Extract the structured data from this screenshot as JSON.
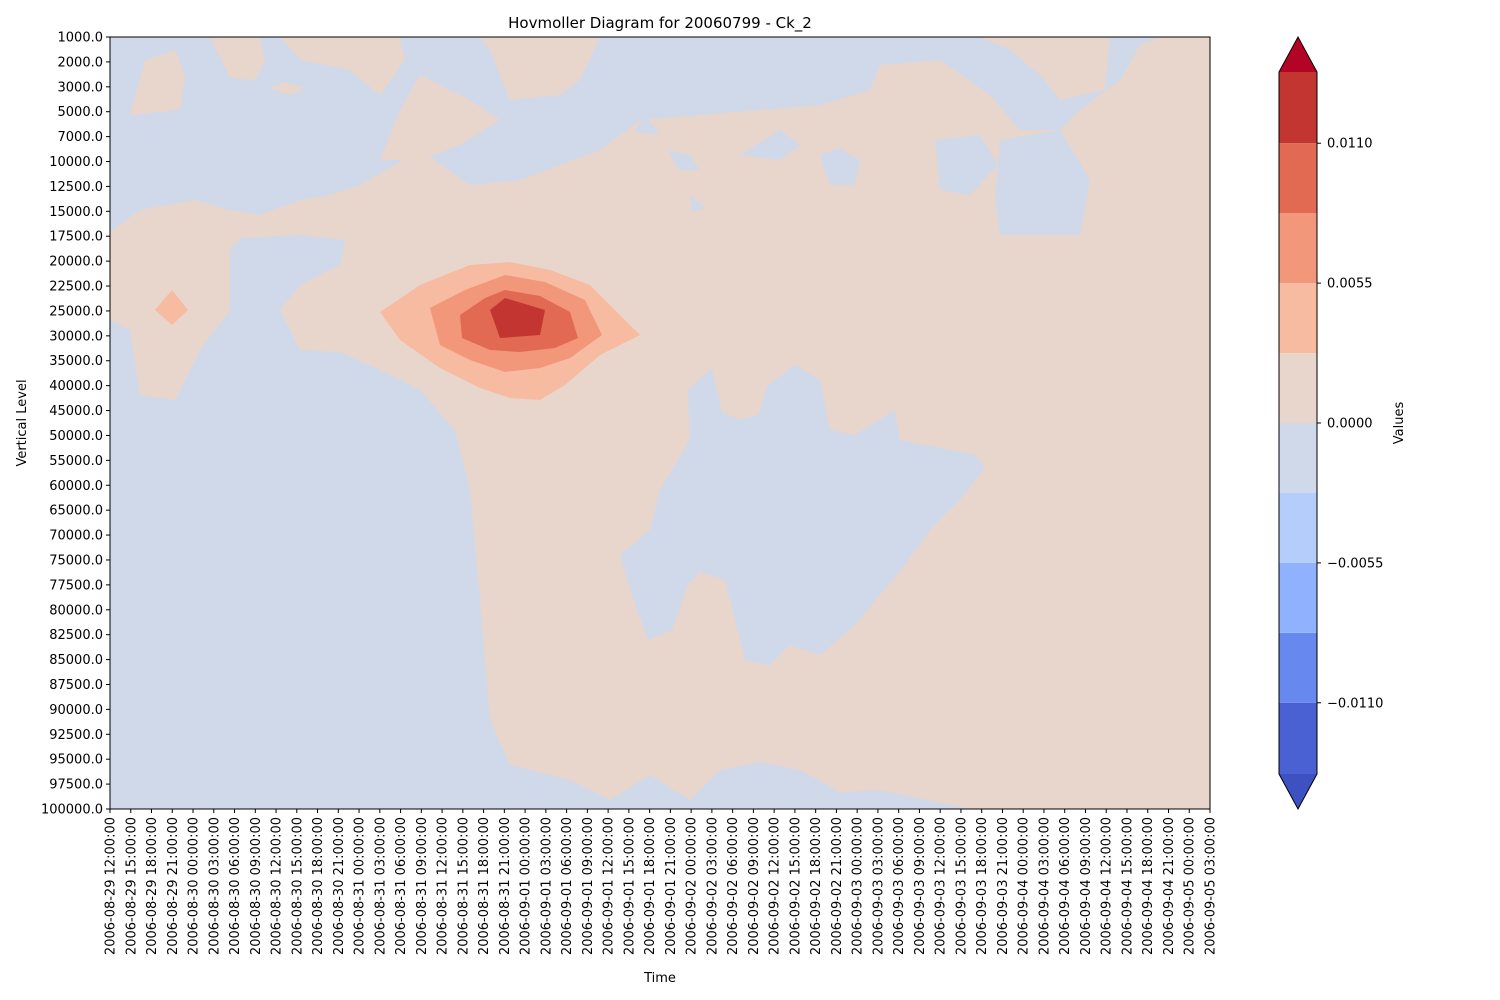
{
  "chart_data": {
    "type": "heatmap",
    "title": "Hovmoller Diagram for 20060799 - Ck_2",
    "xlabel": "Time",
    "ylabel": "Vertical Level",
    "x_ticks": [
      "2006-08-29 12:00:00",
      "2006-08-29 15:00:00",
      "2006-08-29 18:00:00",
      "2006-08-29 21:00:00",
      "2006-08-30 00:00:00",
      "2006-08-30 03:00:00",
      "2006-08-30 06:00:00",
      "2006-08-30 09:00:00",
      "2006-08-30 12:00:00",
      "2006-08-30 15:00:00",
      "2006-08-30 18:00:00",
      "2006-08-30 21:00:00",
      "2006-08-31 00:00:00",
      "2006-08-31 03:00:00",
      "2006-08-31 06:00:00",
      "2006-08-31 09:00:00",
      "2006-08-31 12:00:00",
      "2006-08-31 15:00:00",
      "2006-08-31 18:00:00",
      "2006-08-31 21:00:00",
      "2006-09-01 00:00:00",
      "2006-09-01 03:00:00",
      "2006-09-01 06:00:00",
      "2006-09-01 09:00:00",
      "2006-09-01 12:00:00",
      "2006-09-01 15:00:00",
      "2006-09-01 18:00:00",
      "2006-09-01 21:00:00",
      "2006-09-02 00:00:00",
      "2006-09-02 03:00:00",
      "2006-09-02 06:00:00",
      "2006-09-02 09:00:00",
      "2006-09-02 12:00:00",
      "2006-09-02 15:00:00",
      "2006-09-02 18:00:00",
      "2006-09-02 21:00:00",
      "2006-09-03 00:00:00",
      "2006-09-03 03:00:00",
      "2006-09-03 06:00:00",
      "2006-09-03 09:00:00",
      "2006-09-03 12:00:00",
      "2006-09-03 15:00:00",
      "2006-09-03 18:00:00",
      "2006-09-03 21:00:00",
      "2006-09-04 00:00:00",
      "2006-09-04 03:00:00",
      "2006-09-04 06:00:00",
      "2006-09-04 09:00:00",
      "2006-09-04 12:00:00",
      "2006-09-04 15:00:00",
      "2006-09-04 18:00:00",
      "2006-09-04 21:00:00",
      "2006-09-05 00:00:00",
      "2006-09-05 03:00:00"
    ],
    "y_ticks": [
      "1000.0",
      "2000.0",
      "3000.0",
      "5000.0",
      "7000.0",
      "10000.0",
      "12500.0",
      "15000.0",
      "17500.0",
      "20000.0",
      "22500.0",
      "25000.0",
      "30000.0",
      "35000.0",
      "40000.0",
      "45000.0",
      "50000.0",
      "55000.0",
      "60000.0",
      "65000.0",
      "70000.0",
      "75000.0",
      "77500.0",
      "80000.0",
      "82500.0",
      "85000.0",
      "87500.0",
      "90000.0",
      "92500.0",
      "95000.0",
      "97500.0",
      "100000.0"
    ],
    "y_inverted": true,
    "colorbar": {
      "label": "Values",
      "tick_labels": [
        "0.0110",
        "0.0055",
        "0.0000",
        "−0.0055",
        "−0.0110"
      ],
      "levels": [
        -0.0138,
        -0.011,
        -0.00825,
        -0.0055,
        -0.00275,
        0,
        0.00275,
        0.0055,
        0.00825,
        0.011,
        0.0138
      ],
      "colors": [
        "#4961d2",
        "#6788ee",
        "#8fb1fe",
        "#b4cdfb",
        "#cfd9ea",
        "#e8d6cc",
        "#f7bba1",
        "#f3977a",
        "#e26952",
        "#c33530"
      ],
      "under_color": "#3e51c2",
      "over_color": "#b40426",
      "extend": "both"
    },
    "contour_regions": [
      {
        "level_index": 4,
        "value_range": [
          -0.00275,
          0
        ],
        "note": "background slightly negative"
      },
      {
        "level_index": 5,
        "value_range": [
          0,
          0.00275
        ],
        "note": "broad slightly positive area"
      },
      {
        "level_index": 6,
        "value_range": [
          0.00275,
          0.0055
        ],
        "center_time": "2006-08-31 21:00:00",
        "center_level": 25000.0
      },
      {
        "level_index": 7,
        "value_range": [
          0.0055,
          0.00825
        ],
        "center_time": "2006-08-31 21:00:00",
        "center_level": 25000.0
      },
      {
        "level_index": 8,
        "value_range": [
          0.00825,
          0.011
        ],
        "center_time": "2006-08-31 21:00:00",
        "center_level": 25000.0
      },
      {
        "level_index": 9,
        "value_range": [
          0.011,
          0.0138
        ],
        "center_time": "2006-08-31 21:00:00",
        "center_level": 25000.0
      }
    ]
  }
}
